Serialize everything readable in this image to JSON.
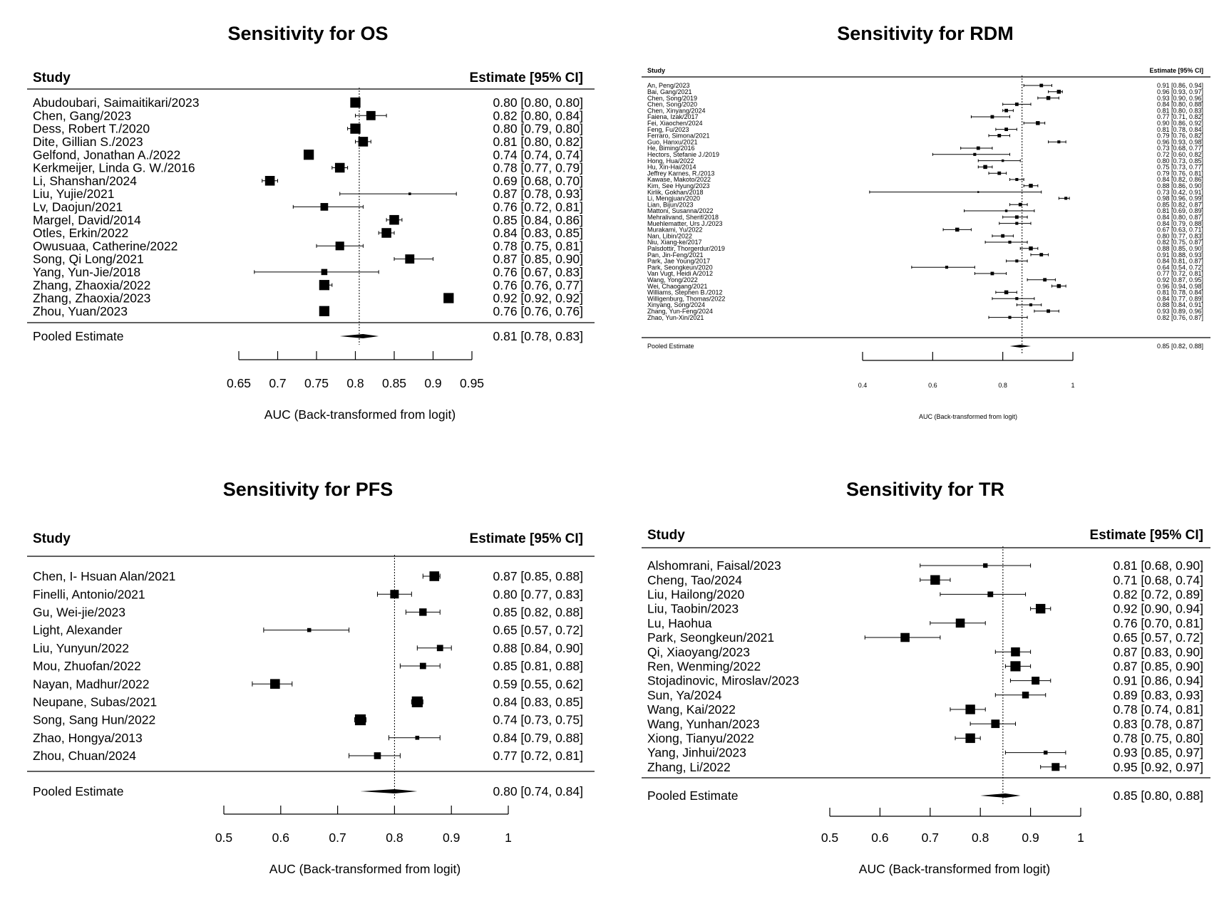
{
  "chart_data": [
    {
      "type": "forest",
      "title": "Sensitivity for OS",
      "study_header": "Study",
      "estimate_header": "Estimate [95% CI]",
      "xlabel": "AUC (Back-transformed from logit)",
      "xlim": [
        0.65,
        0.95
      ],
      "xticks": [
        0.65,
        0.7,
        0.75,
        0.8,
        0.85,
        0.9,
        0.95
      ],
      "xtick_labels": [
        "0.65",
        "0.7",
        "0.75",
        "0.8",
        "0.85",
        "0.9",
        "0.95"
      ],
      "reference_line": 0.805,
      "studies": [
        {
          "name": "Abudoubari, Saimaitikari/2023",
          "est": 0.8,
          "lo": 0.8,
          "hi": 0.8,
          "label": "0.80 [0.80, 0.80]",
          "w": 1.0
        },
        {
          "name": "Chen, Gang/2023",
          "est": 0.82,
          "lo": 0.8,
          "hi": 0.84,
          "label": "0.82 [0.80, 0.84]",
          "w": 0.9
        },
        {
          "name": "Dess, Robert T./2020",
          "est": 0.8,
          "lo": 0.79,
          "hi": 0.8,
          "label": "0.80 [0.79, 0.80]",
          "w": 1.0
        },
        {
          "name": "Dite, Gillian S./2023",
          "est": 0.81,
          "lo": 0.8,
          "hi": 0.82,
          "label": "0.81 [0.80, 0.82]",
          "w": 0.95
        },
        {
          "name": "Gelfond, Jonathan A./2022",
          "est": 0.74,
          "lo": 0.74,
          "hi": 0.74,
          "label": "0.74 [0.74, 0.74]",
          "w": 1.0
        },
        {
          "name": "Kerkmeijer, Linda G. W./2016",
          "est": 0.78,
          "lo": 0.77,
          "hi": 0.79,
          "label": "0.78 [0.77, 0.79]",
          "w": 0.95
        },
        {
          "name": "Li, Shanshan/2024",
          "est": 0.69,
          "lo": 0.68,
          "hi": 0.7,
          "label": "0.69 [0.68, 0.70]",
          "w": 0.95
        },
        {
          "name": "Liu, Yujie/2021",
          "est": 0.87,
          "lo": 0.78,
          "hi": 0.93,
          "label": "0.87 [0.78, 0.93]",
          "w": 0.25
        },
        {
          "name": "Lv, Daojun/2021",
          "est": 0.76,
          "lo": 0.72,
          "hi": 0.81,
          "label": "0.76 [0.72, 0.81]",
          "w": 0.75
        },
        {
          "name": "Margel, David/2014",
          "est": 0.85,
          "lo": 0.84,
          "hi": 0.86,
          "label": "0.85 [0.84, 0.86]",
          "w": 0.95
        },
        {
          "name": "Otles, Erkin/2022",
          "est": 0.84,
          "lo": 0.83,
          "hi": 0.85,
          "label": "0.84 [0.83, 0.85]",
          "w": 0.95
        },
        {
          "name": "Owusuaa, Catherine/2022",
          "est": 0.78,
          "lo": 0.75,
          "hi": 0.81,
          "label": "0.78 [0.75, 0.81]",
          "w": 0.85
        },
        {
          "name": "Song, Qi Long/2021",
          "est": 0.87,
          "lo": 0.85,
          "hi": 0.9,
          "label": "0.87 [0.85, 0.90]",
          "w": 0.9
        },
        {
          "name": "Yang, Yun-Jie/2018",
          "est": 0.76,
          "lo": 0.67,
          "hi": 0.83,
          "label": "0.76 [0.67, 0.83]",
          "w": 0.6
        },
        {
          "name": "Zhang, Zhaoxia/2022",
          "est": 0.76,
          "lo": 0.76,
          "hi": 0.77,
          "label": "0.76 [0.76, 0.77]",
          "w": 1.0
        },
        {
          "name": "Zhang, Zhaoxia/2023",
          "est": 0.92,
          "lo": 0.92,
          "hi": 0.92,
          "label": "0.92 [0.92, 0.92]",
          "w": 1.0
        },
        {
          "name": "Zhou, Yuan/2023",
          "est": 0.76,
          "lo": 0.76,
          "hi": 0.76,
          "label": "0.76 [0.76, 0.76]",
          "w": 1.0
        }
      ],
      "pooled": {
        "name": "Pooled Estimate",
        "est": 0.81,
        "lo": 0.78,
        "hi": 0.83,
        "label": "0.81 [0.78, 0.83]"
      }
    },
    {
      "type": "forest",
      "title": "Sensitivity for RDM",
      "study_header": "Study",
      "estimate_header": "Estimate [95% CI]",
      "xlabel": "AUC (Back-transformed from logit)",
      "xlim": [
        0.4,
        1
      ],
      "xticks": [
        0.4,
        0.6,
        0.8,
        1
      ],
      "xtick_labels": [
        "0.4",
        "0.6",
        "0.8",
        "1"
      ],
      "reference_line": 0.855,
      "studies": [
        {
          "name": "An, Peng/2023",
          "est": 0.91,
          "lo": 0.86,
          "hi": 0.94,
          "label": "0.91 [0.86, 0.94]",
          "w": 0.7
        },
        {
          "name": "Bai, Gang/2021",
          "est": 0.96,
          "lo": 0.93,
          "hi": 0.97,
          "label": "0.96 [0.93, 0.97]",
          "w": 0.8
        },
        {
          "name": "Chen, Song/2019",
          "est": 0.93,
          "lo": 0.9,
          "hi": 0.96,
          "label": "0.93 [0.90, 0.96]",
          "w": 0.8
        },
        {
          "name": "Chen, Song/2020",
          "est": 0.84,
          "lo": 0.8,
          "hi": 0.88,
          "label": "0.84 [0.80, 0.88]",
          "w": 0.7
        },
        {
          "name": "Chen, Xinyang/2024",
          "est": 0.81,
          "lo": 0.8,
          "hi": 0.83,
          "label": "0.81 [0.80, 0.83]",
          "w": 0.7
        },
        {
          "name": "Faiena, Izak/2017",
          "est": 0.77,
          "lo": 0.71,
          "hi": 0.82,
          "label": "0.77 [0.71, 0.82]",
          "w": 0.7
        },
        {
          "name": "Fei, Xiaochen/2024",
          "est": 0.9,
          "lo": 0.86,
          "hi": 0.92,
          "label": "0.90 [0.86, 0.92]",
          "w": 0.8
        },
        {
          "name": "Feng, Fu/2023",
          "est": 0.81,
          "lo": 0.78,
          "hi": 0.84,
          "label": "0.81 [0.78, 0.84]",
          "w": 0.7
        },
        {
          "name": "Ferraro, Simona/2021",
          "est": 0.79,
          "lo": 0.76,
          "hi": 0.82,
          "label": "0.79 [0.76, 0.82]",
          "w": 0.7
        },
        {
          "name": "Guo, Hanxu/2021",
          "est": 0.96,
          "lo": 0.93,
          "hi": 0.98,
          "label": "0.96 [0.93, 0.98]",
          "w": 0.6
        },
        {
          "name": "He, Biming/2016",
          "est": 0.73,
          "lo": 0.68,
          "hi": 0.77,
          "label": "0.73 [0.68, 0.77]",
          "w": 0.7
        },
        {
          "name": "Hectors, Stefanie J./2019",
          "est": 0.72,
          "lo": 0.6,
          "hi": 0.82,
          "label": "0.72 [0.60, 0.82]",
          "w": 0.6
        },
        {
          "name": "Hong, Hua/2022",
          "est": 0.8,
          "lo": 0.73,
          "hi": 0.85,
          "label": "0.80 [0.73, 0.85]",
          "w": 0.5
        },
        {
          "name": "Hu, Xin-Hai/2014",
          "est": 0.75,
          "lo": 0.73,
          "hi": 0.77,
          "label": "0.75 [0.73, 0.77]",
          "w": 0.8
        },
        {
          "name": "Jeffrey Karnes, R./2013",
          "est": 0.79,
          "lo": 0.76,
          "hi": 0.81,
          "label": "0.79 [0.76, 0.81]",
          "w": 0.7
        },
        {
          "name": "Kawase, Makoto/2022",
          "est": 0.84,
          "lo": 0.82,
          "hi": 0.86,
          "label": "0.84 [0.82, 0.86]",
          "w": 0.6
        },
        {
          "name": "Kim, See Hyung/2023",
          "est": 0.88,
          "lo": 0.86,
          "hi": 0.9,
          "label": "0.88 [0.86, 0.90]",
          "w": 0.8
        },
        {
          "name": "Kirlik, Gokhan/2018",
          "est": 0.73,
          "lo": 0.42,
          "hi": 0.91,
          "label": "0.73 [0.42, 0.91]",
          "w": 0.3
        },
        {
          "name": "Li, Mengjuan/2020",
          "est": 0.98,
          "lo": 0.96,
          "hi": 0.99,
          "label": "0.98 [0.96, 0.99]",
          "w": 0.6
        },
        {
          "name": "Lian, Bijun/2023",
          "est": 0.85,
          "lo": 0.82,
          "hi": 0.87,
          "label": "0.85 [0.82, 0.87]",
          "w": 0.7
        },
        {
          "name": "Mattoni, Susanna/2022",
          "est": 0.81,
          "lo": 0.69,
          "hi": 0.89,
          "label": "0.81 [0.69, 0.89]",
          "w": 0.5
        },
        {
          "name": "Mehralivand, Sherif/2018",
          "est": 0.84,
          "lo": 0.8,
          "hi": 0.87,
          "label": "0.84 [0.80, 0.87]",
          "w": 0.7
        },
        {
          "name": "Muehlematter, Urs J./2023",
          "est": 0.84,
          "lo": 0.79,
          "hi": 0.88,
          "label": "0.84 [0.79, 0.88]",
          "w": 0.6
        },
        {
          "name": "Murakami, Yu/2022",
          "est": 0.67,
          "lo": 0.63,
          "hi": 0.71,
          "label": "0.67 [0.63, 0.71]",
          "w": 0.8
        },
        {
          "name": "Nan, Libin/2022",
          "est": 0.8,
          "lo": 0.77,
          "hi": 0.83,
          "label": "0.80 [0.77, 0.83]",
          "w": 0.7
        },
        {
          "name": "Niu, Xiang-ke/2017",
          "est": 0.82,
          "lo": 0.75,
          "hi": 0.87,
          "label": "0.82 [0.75, 0.87]",
          "w": 0.6
        },
        {
          "name": "Palsdottir, Thorgerdur/2019",
          "est": 0.88,
          "lo": 0.85,
          "hi": 0.9,
          "label": "0.88 [0.85, 0.90]",
          "w": 0.8
        },
        {
          "name": "Pan, Jin-Feng/2021",
          "est": 0.91,
          "lo": 0.88,
          "hi": 0.93,
          "label": "0.91 [0.88, 0.93]",
          "w": 0.7
        },
        {
          "name": "Park, Jae Young/2017",
          "est": 0.84,
          "lo": 0.81,
          "hi": 0.87,
          "label": "0.84 [0.81, 0.87]",
          "w": 0.6
        },
        {
          "name": "Park, Seongkeun/2020",
          "est": 0.64,
          "lo": 0.54,
          "hi": 0.72,
          "label": "0.64 [0.54, 0.72]",
          "w": 0.6
        },
        {
          "name": "Van Vugt, Heidi A/2012",
          "est": 0.77,
          "lo": 0.72,
          "hi": 0.81,
          "label": "0.77 [0.72, 0.81]",
          "w": 0.7
        },
        {
          "name": "Wang, Yong/2022",
          "est": 0.92,
          "lo": 0.87,
          "hi": 0.95,
          "label": "0.92 [0.87, 0.95]",
          "w": 0.7
        },
        {
          "name": "Wei, Chaogang/2021",
          "est": 0.96,
          "lo": 0.94,
          "hi": 0.98,
          "label": "0.96 [0.94, 0.98]",
          "w": 0.8
        },
        {
          "name": "Williams, Stephen B./2012",
          "est": 0.81,
          "lo": 0.78,
          "hi": 0.84,
          "label": "0.81 [0.78, 0.84]",
          "w": 0.8
        },
        {
          "name": "Willigenburg, Thomas/2022",
          "est": 0.84,
          "lo": 0.77,
          "hi": 0.89,
          "label": "0.84 [0.77, 0.89]",
          "w": 0.6
        },
        {
          "name": "Xinyang, Song/2024",
          "est": 0.88,
          "lo": 0.84,
          "hi": 0.91,
          "label": "0.88 [0.84, 0.91]",
          "w": 0.6
        },
        {
          "name": "Zhang, Yun-Feng/2024",
          "est": 0.93,
          "lo": 0.89,
          "hi": 0.96,
          "label": "0.93 [0.89, 0.96]",
          "w": 0.7
        },
        {
          "name": "Zhao, Yun-Xin/2021",
          "est": 0.82,
          "lo": 0.76,
          "hi": 0.87,
          "label": "0.82 [0.76, 0.87]",
          "w": 0.6
        }
      ],
      "pooled": {
        "name": "Pooled Estimate",
        "est": 0.85,
        "lo": 0.82,
        "hi": 0.88,
        "label": "0.85 [0.82, 0.88]"
      }
    },
    {
      "type": "forest",
      "title": "Sensitivity for PFS",
      "study_header": "Study",
      "estimate_header": "Estimate [95% CI]",
      "xlabel": "AUC (Back-transformed from logit)",
      "xlim": [
        0.5,
        1
      ],
      "xticks": [
        0.5,
        0.6,
        0.7,
        0.8,
        0.9,
        1
      ],
      "xtick_labels": [
        "0.5",
        "0.6",
        "0.7",
        "0.8",
        "0.9",
        "1"
      ],
      "reference_line": 0.8,
      "studies": [
        {
          "name": "Chen, I- Hsuan Alan/2021",
          "est": 0.87,
          "lo": 0.85,
          "hi": 0.88,
          "label": "0.87 [0.85, 0.88]",
          "w": 0.85
        },
        {
          "name": "Finelli, Antonio/2021",
          "est": 0.8,
          "lo": 0.77,
          "hi": 0.83,
          "label": "0.80 [0.77, 0.83]",
          "w": 0.75
        },
        {
          "name": "Gu, Wei-jie/2023",
          "est": 0.85,
          "lo": 0.82,
          "hi": 0.88,
          "label": "0.85 [0.82, 0.88]",
          "w": 0.65
        },
        {
          "name": "Light, Alexander",
          "est": 0.65,
          "lo": 0.57,
          "hi": 0.72,
          "label": "0.65 [0.57, 0.72]",
          "w": 0.35
        },
        {
          "name": "Liu, Yunyun/2022",
          "est": 0.88,
          "lo": 0.84,
          "hi": 0.9,
          "label": "0.88 [0.84, 0.90]",
          "w": 0.55
        },
        {
          "name": "Mou, Zhuofan/2022",
          "est": 0.85,
          "lo": 0.81,
          "hi": 0.88,
          "label": "0.85 [0.81, 0.88]",
          "w": 0.55
        },
        {
          "name": "Nayan, Madhur/2022",
          "est": 0.59,
          "lo": 0.55,
          "hi": 0.62,
          "label": "0.59 [0.55, 0.62]",
          "w": 0.85
        },
        {
          "name": "Neupane, Subas/2021",
          "est": 0.84,
          "lo": 0.83,
          "hi": 0.85,
          "label": "0.84 [0.83, 0.85]",
          "w": 0.95
        },
        {
          "name": "Song, Sang Hun/2022",
          "est": 0.74,
          "lo": 0.73,
          "hi": 0.75,
          "label": "0.74 [0.73, 0.75]",
          "w": 0.95
        },
        {
          "name": "Zhao, Hongya/2013",
          "est": 0.84,
          "lo": 0.79,
          "hi": 0.88,
          "label": "0.84 [0.79, 0.88]",
          "w": 0.35
        },
        {
          "name": "Zhou, Chuan/2024",
          "est": 0.77,
          "lo": 0.72,
          "hi": 0.81,
          "label": "0.77 [0.72, 0.81]",
          "w": 0.6
        }
      ],
      "pooled": {
        "name": "Pooled Estimate",
        "est": 0.8,
        "lo": 0.74,
        "hi": 0.84,
        "label": "0.80 [0.74, 0.84]"
      }
    },
    {
      "type": "forest",
      "title": "Sensitivity for TR",
      "study_header": "Study",
      "estimate_header": "Estimate [95% CI]",
      "xlabel": "AUC (Back-transformed from logit)",
      "xlim": [
        0.5,
        1
      ],
      "xticks": [
        0.5,
        0.6,
        0.7,
        0.8,
        0.9,
        1
      ],
      "xtick_labels": [
        "0.5",
        "0.6",
        "0.7",
        "0.8",
        "0.9",
        "1"
      ],
      "reference_line": 0.845,
      "studies": [
        {
          "name": "Alshomrani, Faisal/2023",
          "est": 0.81,
          "lo": 0.68,
          "hi": 0.9,
          "label": "0.81 [0.68, 0.90]",
          "w": 0.4
        },
        {
          "name": "Cheng, Tao/2024",
          "est": 0.71,
          "lo": 0.68,
          "hi": 0.74,
          "label": "0.71 [0.68, 0.74]",
          "w": 0.85
        },
        {
          "name": "Liu, Hailong/2020",
          "est": 0.82,
          "lo": 0.72,
          "hi": 0.89,
          "label": "0.82 [0.72, 0.89]",
          "w": 0.5
        },
        {
          "name": "Liu, Taobin/2023",
          "est": 0.92,
          "lo": 0.9,
          "hi": 0.94,
          "label": "0.92 [0.90, 0.94]",
          "w": 0.85
        },
        {
          "name": "Lu, Haohua",
          "est": 0.76,
          "lo": 0.7,
          "hi": 0.81,
          "label": "0.76 [0.70, 0.81]",
          "w": 0.8
        },
        {
          "name": "Park, Seongkeun/2021",
          "est": 0.65,
          "lo": 0.57,
          "hi": 0.72,
          "label": "0.65 [0.57, 0.72]",
          "w": 0.8
        },
        {
          "name": "Qi, Xiaoyang/2023",
          "est": 0.87,
          "lo": 0.83,
          "hi": 0.9,
          "label": "0.87 [0.83, 0.90]",
          "w": 0.8
        },
        {
          "name": "Ren, Wenming/2022",
          "est": 0.87,
          "lo": 0.85,
          "hi": 0.9,
          "label": "0.87 [0.85, 0.90]",
          "w": 0.9
        },
        {
          "name": "Stojadinovic, Miroslav/2023",
          "est": 0.91,
          "lo": 0.86,
          "hi": 0.94,
          "label": "0.91 [0.86, 0.94]",
          "w": 0.7
        },
        {
          "name": "Sun, Ya/2024",
          "est": 0.89,
          "lo": 0.83,
          "hi": 0.93,
          "label": "0.89 [0.83, 0.93]",
          "w": 0.6
        },
        {
          "name": "Wang, Kai/2022",
          "est": 0.78,
          "lo": 0.74,
          "hi": 0.81,
          "label": "0.78 [0.74, 0.81]",
          "w": 0.85
        },
        {
          "name": "Wang, Yunhan/2023",
          "est": 0.83,
          "lo": 0.78,
          "hi": 0.87,
          "label": "0.83 [0.78, 0.87]",
          "w": 0.75
        },
        {
          "name": "Xiong, Tianyu/2022",
          "est": 0.78,
          "lo": 0.75,
          "hi": 0.8,
          "label": "0.78 [0.75, 0.80]",
          "w": 0.85
        },
        {
          "name": "Yang, Jinhui/2023",
          "est": 0.93,
          "lo": 0.85,
          "hi": 0.97,
          "label": "0.93 [0.85, 0.97]",
          "w": 0.35
        },
        {
          "name": "Zhang, Li/2022",
          "est": 0.95,
          "lo": 0.92,
          "hi": 0.97,
          "label": "0.95 [0.92, 0.97]",
          "w": 0.7
        }
      ],
      "pooled": {
        "name": "Pooled Estimate",
        "est": 0.85,
        "lo": 0.8,
        "hi": 0.88,
        "label": "0.85 [0.80, 0.88]"
      }
    }
  ]
}
